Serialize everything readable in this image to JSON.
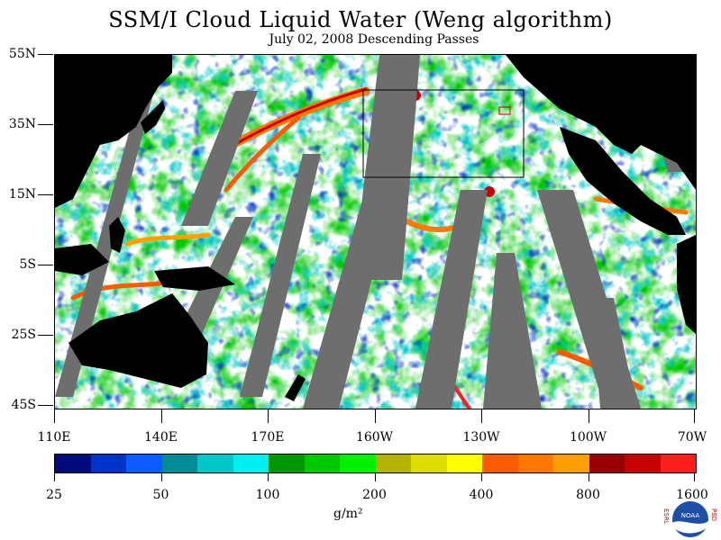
{
  "title": "SSM/I Cloud Liquid Water (Weng algorithm)",
  "subtitle": "July 02, 2008  Descending Passes",
  "latitude_labels": [
    "55N",
    "35N",
    "15N",
    "5S",
    "25S",
    "45S"
  ],
  "longitude_labels": [
    "110E",
    "140E",
    "170E",
    "160W",
    "130W",
    "100W",
    "70W"
  ],
  "colorbar": {
    "tick_labels": [
      "25",
      "50",
      "100",
      "200",
      "400",
      "800",
      "1600"
    ],
    "units": "g/m²",
    "colors": [
      "#000b7a",
      "#0034c8",
      "#0a5cff",
      "#008c96",
      "#00c8c8",
      "#00f0f0",
      "#009600",
      "#00c800",
      "#00f000",
      "#b4b400",
      "#dcdc00",
      "#ffff00",
      "#ff5a00",
      "#ff7800",
      "#ffa000",
      "#960000",
      "#c80000",
      "#ff1e1e"
    ]
  },
  "map_colors": {
    "land": "#000000",
    "missing_swath": "#6e6e6e",
    "clear": "#ffffff",
    "box": "#000000"
  },
  "logo": {
    "left_text": "ESRL",
    "right_text": "PSD",
    "center_text": "NOAA"
  }
}
